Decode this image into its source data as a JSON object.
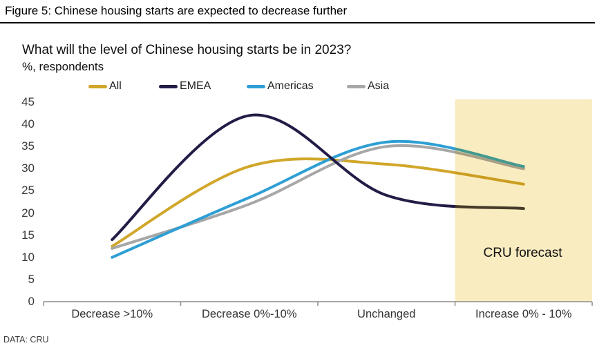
{
  "header": {
    "figure_title": "Figure 5: Chinese housing starts are expected to decrease further"
  },
  "footer": {
    "source": "DATA: CRU"
  },
  "chart_data": {
    "type": "line",
    "title": "What will the level of Chinese housing starts be in 2023?",
    "units_label": "%, respondents",
    "categories": [
      "Decrease >10%",
      "Decrease 0%-10%",
      "Unchanged",
      "Increase 0% - 10%"
    ],
    "series": [
      {
        "name": "All",
        "color": "#D1A72B",
        "forecast_color": "#CB9D20",
        "values": [
          12.5,
          30.5,
          31,
          26.5
        ]
      },
      {
        "name": "EMEA",
        "color": "#221C46",
        "forecast_color": "#453B28",
        "values": [
          14,
          42,
          24,
          21
        ]
      },
      {
        "name": "Americas",
        "color": "#2E9FD4",
        "forecast_color": "#43998F",
        "values": [
          10,
          23.5,
          36,
          30.5
        ]
      },
      {
        "name": "Asia",
        "color": "#A7A7A7",
        "forecast_color": "#A89F85",
        "values": [
          12,
          22,
          35,
          30
        ]
      }
    ],
    "ylim": [
      0,
      45
    ],
    "yticks": [
      "45",
      "40",
      "35",
      "30",
      "25",
      "20",
      "15",
      "10",
      "5",
      "0"
    ],
    "grid": false,
    "legend_position": "top",
    "forecast": {
      "label": "CRU forecast",
      "band_color": "#F9ECC1",
      "start_category_index": 3
    },
    "axis_color": "#8c8c8c"
  }
}
